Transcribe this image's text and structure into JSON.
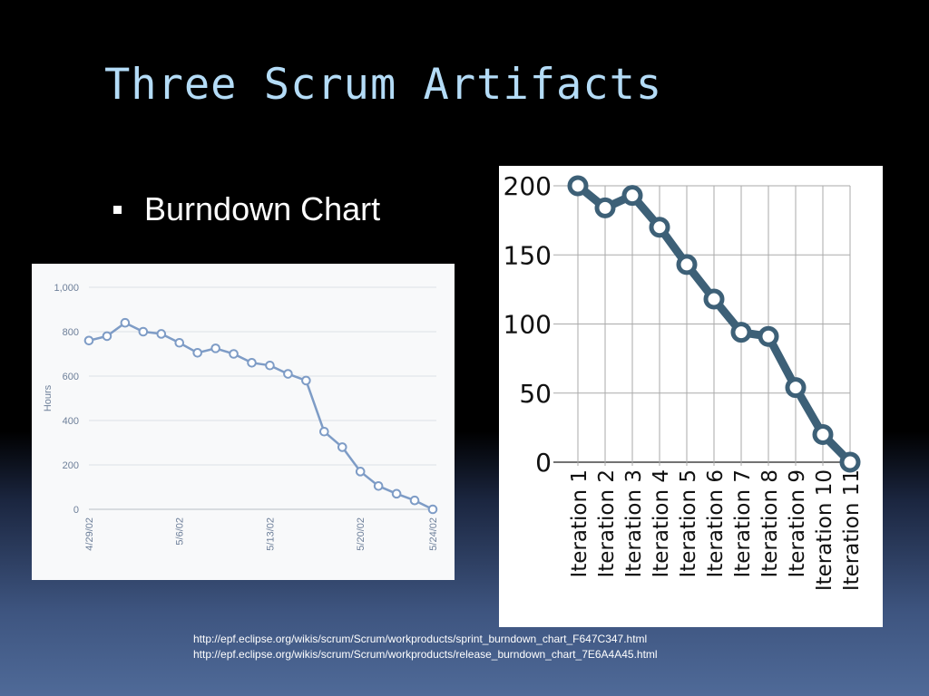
{
  "slide": {
    "title": "Three Scrum Artifacts",
    "bullets": [
      {
        "text": "Burndown Chart",
        "marker_icon": "square-bullet-icon"
      }
    ],
    "sources": [
      "http://epf.eclipse.org/wikis/scrum/Scrum/workproducts/sprint_burndown_chart_F647C347.html",
      "http://epf.eclipse.org/wikis/scrum/Scrum/workproducts/release_burndown_chart_7E6A4A45.html"
    ]
  },
  "chart_data": [
    {
      "type": "line",
      "title": "",
      "xlabel": "",
      "ylabel": "Hours",
      "ylim": [
        0,
        1000
      ],
      "y_ticks": [
        "0",
        "200",
        "400",
        "600",
        "800",
        "1,000"
      ],
      "x_tick_labels": [
        "4/29/02",
        "5/6/02",
        "5/13/02",
        "5/20/02",
        "5/24/02"
      ],
      "x_tick_at_point": [
        0,
        5,
        10,
        15,
        19
      ],
      "grid": true,
      "line_color": "#7e9cc6",
      "series": [
        {
          "values": [
            760,
            780,
            840,
            800,
            790,
            750,
            705,
            725,
            700,
            660,
            648,
            610,
            580,
            350,
            280,
            170,
            105,
            70,
            40,
            0
          ]
        }
      ]
    },
    {
      "type": "line",
      "title": "",
      "xlabel": "",
      "ylabel": "",
      "ylim": [
        0,
        200
      ],
      "y_ticks": [
        "0",
        "50",
        "100",
        "150",
        "200"
      ],
      "categories": [
        "Iteration 1",
        "Iteration 2",
        "Iteration 3",
        "Iteration 4",
        "Iteration 5",
        "Iteration 6",
        "Iteration 7",
        "Iteration 8",
        "Iteration 9",
        "Iteration 10",
        "Iteration 11"
      ],
      "grid": true,
      "line_color": "#3d6077",
      "series": [
        {
          "values": [
            200,
            184,
            193,
            170,
            143,
            118,
            94,
            91,
            54,
            20,
            0
          ]
        }
      ]
    }
  ]
}
